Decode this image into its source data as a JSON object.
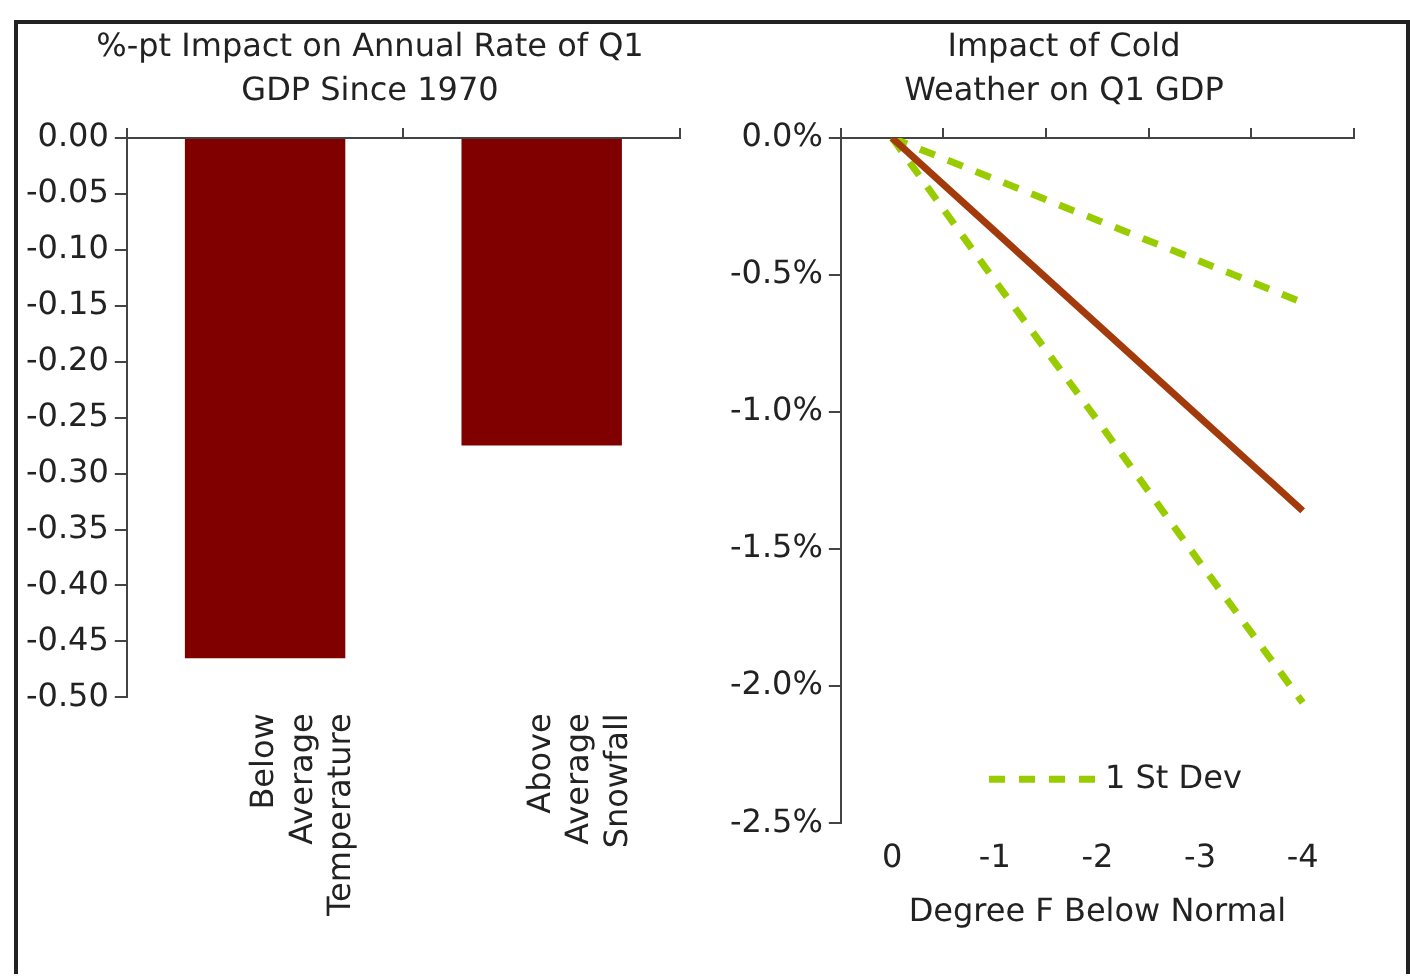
{
  "chart_data": [
    {
      "type": "bar",
      "title": "%-pt Impact on Annual Rate of Q1 GDP Since 1970",
      "categories": [
        "Below Average Temperature",
        "Above Average Snowfall"
      ],
      "values": [
        -0.465,
        -0.275
      ],
      "color": "#800000",
      "ylim": [
        -0.5,
        0
      ],
      "yticks": [
        {
          "value": 0,
          "label": "0.00"
        },
        {
          "value": -0.05,
          "label": "-0.05"
        },
        {
          "value": -0.1,
          "label": "-0.10"
        },
        {
          "value": -0.15,
          "label": "-0.15"
        },
        {
          "value": -0.2,
          "label": "-0.20"
        },
        {
          "value": -0.25,
          "label": "-0.25"
        },
        {
          "value": -0.3,
          "label": "-0.30"
        },
        {
          "value": -0.35,
          "label": "-0.35"
        },
        {
          "value": -0.4,
          "label": "-0.40"
        },
        {
          "value": -0.45,
          "label": "-0.45"
        },
        {
          "value": -0.5,
          "label": "-0.50"
        }
      ],
      "grid": false,
      "legend": false
    },
    {
      "type": "line",
      "title": "Impact of Cold Weather on Q1 GDP",
      "xlabel": "Degree F Below Normal",
      "categories": [
        "0",
        "-1",
        "-2",
        "-3",
        "-4"
      ],
      "series": [
        {
          "color": "#a33a0c",
          "line_style": "solid",
          "values": [
            0,
            -0.34,
            -0.68,
            -1.02,
            -1.36
          ]
        },
        {
          "name": "1 St Dev",
          "color": "#99cc00",
          "line_style": "dashed",
          "values": [
            0,
            -0.15,
            -0.3,
            -0.45,
            -0.6
          ]
        },
        {
          "color": "#99cc00",
          "line_style": "dashed",
          "values": [
            0,
            -0.52,
            -1.03,
            -1.55,
            -2.06
          ]
        }
      ],
      "ylim": [
        -2.5,
        0
      ],
      "yticks": [
        {
          "value": 0,
          "label": "0.0%"
        },
        {
          "value": -0.5,
          "label": "-0.5%"
        },
        {
          "value": -1,
          "label": "-1.0%"
        },
        {
          "value": -1.5,
          "label": "-1.5%"
        },
        {
          "value": -2,
          "label": "-2.0%"
        },
        {
          "value": -2.5,
          "label": "-2.5%"
        }
      ],
      "grid": false,
      "legend": "bottom",
      "marker": "none"
    }
  ]
}
